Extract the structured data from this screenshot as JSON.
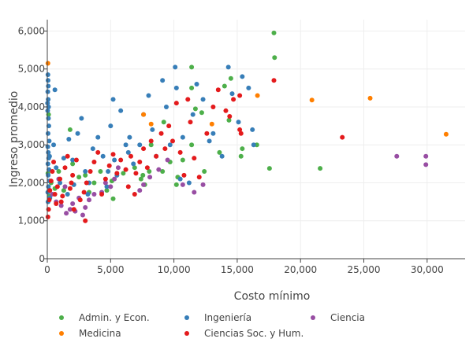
{
  "chart_data": {
    "type": "scatter",
    "xlabel": "Costo mínimo",
    "ylabel": "Ingreso promedio",
    "xlim": [
      0,
      33000
    ],
    "ylim": [
      0,
      6300
    ],
    "x_ticks": [
      0,
      5000,
      10000,
      15000,
      20000,
      25000,
      30000
    ],
    "x_tick_labels": [
      "0",
      "5,000",
      "10,000",
      "15,000",
      "20,000",
      "25,000",
      "30,000"
    ],
    "y_ticks": [
      0,
      1000,
      2000,
      3000,
      4000,
      5000,
      6000
    ],
    "y_tick_labels": [
      "0",
      "1,000",
      "2,000",
      "3,000",
      "4,000",
      "5,000",
      "6,000"
    ],
    "grid": true,
    "legend_position": "bottom",
    "series": [
      {
        "name": "Admin. y Econ.",
        "color": "#4daf4a",
        "points": [
          [
            17900,
            5950
          ],
          [
            17950,
            5300
          ],
          [
            17550,
            2380
          ],
          [
            21550,
            2380
          ],
          [
            16550,
            3000
          ],
          [
            15300,
            2700
          ],
          [
            15400,
            2900
          ],
          [
            14350,
            3650
          ],
          [
            11400,
            5050
          ],
          [
            11400,
            4500
          ],
          [
            11400,
            3000
          ],
          [
            12400,
            2300
          ],
          [
            10300,
            2150
          ],
          [
            10200,
            1950
          ],
          [
            9700,
            2550
          ],
          [
            9100,
            2300
          ],
          [
            8050,
            2300
          ],
          [
            7700,
            1950
          ],
          [
            7550,
            2200
          ],
          [
            6900,
            2400
          ],
          [
            5200,
            1580
          ],
          [
            5100,
            2050
          ],
          [
            4700,
            1800
          ],
          [
            4200,
            2300
          ],
          [
            3700,
            2000
          ],
          [
            3300,
            1750
          ],
          [
            2500,
            2150
          ],
          [
            2000,
            2500
          ],
          [
            1800,
            3400
          ],
          [
            1300,
            1800
          ],
          [
            900,
            2300
          ],
          [
            600,
            1850
          ],
          [
            300,
            2000
          ],
          [
            150,
            1650
          ],
          [
            100,
            3800
          ],
          [
            50,
            2250
          ],
          [
            200,
            1600
          ],
          [
            14500,
            4750
          ],
          [
            14000,
            4550
          ],
          [
            12200,
            3850
          ],
          [
            11700,
            3950
          ],
          [
            9200,
            3600
          ],
          [
            8200,
            3000
          ],
          [
            3000,
            2200
          ],
          [
            6000,
            2250
          ],
          [
            10700,
            2600
          ],
          [
            13600,
            2800
          ],
          [
            7400,
            2100
          ]
        ]
      },
      {
        "name": "Ingeniería",
        "color": "#377eb8",
        "points": [
          [
            50,
            4850
          ],
          [
            60,
            4700
          ],
          [
            80,
            4550
          ],
          [
            40,
            4400
          ],
          [
            70,
            4200
          ],
          [
            100,
            4000
          ],
          [
            30,
            3900
          ],
          [
            90,
            3700
          ],
          [
            120,
            3500
          ],
          [
            60,
            3300
          ],
          [
            150,
            3100
          ],
          [
            40,
            2950
          ],
          [
            80,
            2800
          ],
          [
            110,
            2650
          ],
          [
            50,
            2500
          ],
          [
            130,
            2350
          ],
          [
            70,
            2200
          ],
          [
            160,
            2050
          ],
          [
            90,
            1900
          ],
          [
            40,
            1750
          ],
          [
            200,
            1600
          ],
          [
            60,
            1500
          ],
          [
            20,
            4100
          ],
          [
            180,
            2700
          ],
          [
            600,
            4450
          ],
          [
            500,
            3000
          ],
          [
            700,
            2400
          ],
          [
            1000,
            2000
          ],
          [
            1300,
            2650
          ],
          [
            1700,
            3150
          ],
          [
            2000,
            2600
          ],
          [
            2400,
            3300
          ],
          [
            2700,
            3700
          ],
          [
            3000,
            2300
          ],
          [
            3300,
            2000
          ],
          [
            3600,
            2900
          ],
          [
            4000,
            3200
          ],
          [
            4400,
            2700
          ],
          [
            4800,
            2300
          ],
          [
            5000,
            3500
          ],
          [
            5200,
            4200
          ],
          [
            5300,
            2600
          ],
          [
            5500,
            2200
          ],
          [
            5800,
            3900
          ],
          [
            6200,
            3000
          ],
          [
            6500,
            3200
          ],
          [
            6800,
            2500
          ],
          [
            7300,
            3000
          ],
          [
            7600,
            3800
          ],
          [
            8000,
            4300
          ],
          [
            8300,
            3400
          ],
          [
            8600,
            2700
          ],
          [
            9100,
            4700
          ],
          [
            9400,
            4000
          ],
          [
            9700,
            3000
          ],
          [
            10100,
            5050
          ],
          [
            10200,
            4500
          ],
          [
            10500,
            2100
          ],
          [
            10700,
            3200
          ],
          [
            11200,
            2000
          ],
          [
            11500,
            3800
          ],
          [
            11800,
            4600
          ],
          [
            12300,
            4200
          ],
          [
            12800,
            3100
          ],
          [
            13100,
            3300
          ],
          [
            13800,
            2700
          ],
          [
            14300,
            5050
          ],
          [
            14600,
            4350
          ],
          [
            15100,
            3600
          ],
          [
            15400,
            4800
          ],
          [
            15900,
            4500
          ],
          [
            16200,
            3400
          ],
          [
            16300,
            3000
          ],
          [
            4700,
            1900
          ],
          [
            3200,
            1700
          ],
          [
            2100,
            1950
          ],
          [
            1600,
            1700
          ],
          [
            6400,
            2800
          ]
        ]
      },
      {
        "name": "Ciencia",
        "color": "#984ea3",
        "points": [
          [
            1500,
            1200
          ],
          [
            1800,
            1300
          ],
          [
            2200,
            1250
          ],
          [
            2800,
            1150
          ],
          [
            3000,
            1350
          ],
          [
            1100,
            1400
          ],
          [
            700,
            1500
          ],
          [
            2500,
            1600
          ],
          [
            3300,
            1550
          ],
          [
            3700,
            1700
          ],
          [
            4300,
            1750
          ],
          [
            4600,
            2000
          ],
          [
            5000,
            1900
          ],
          [
            5300,
            2100
          ],
          [
            5600,
            2400
          ],
          [
            7300,
            1800
          ],
          [
            7600,
            1950
          ],
          [
            8100,
            2150
          ],
          [
            8800,
            2350
          ],
          [
            9500,
            2600
          ],
          [
            10700,
            1950
          ],
          [
            11600,
            1750
          ],
          [
            12300,
            1950
          ],
          [
            27600,
            2700
          ],
          [
            29900,
            2700
          ],
          [
            29900,
            2480
          ],
          [
            900,
            2100
          ],
          [
            1400,
            1900
          ],
          [
            2000,
            1450
          ],
          [
            400,
            1700
          ]
        ]
      },
      {
        "name": "Medicina",
        "color": "#ff7f00",
        "points": [
          [
            50,
            5150
          ],
          [
            7600,
            3800
          ],
          [
            8200,
            3550
          ],
          [
            13000,
            3550
          ],
          [
            16600,
            4300
          ],
          [
            20900,
            4180
          ],
          [
            25500,
            4230
          ],
          [
            31500,
            3280
          ]
        ]
      },
      {
        "name": "Ciencias Soc. y Hum.",
        "color": "#e41a1c",
        "points": [
          [
            50,
            1100
          ],
          [
            100,
            1300
          ],
          [
            150,
            1550
          ],
          [
            200,
            1800
          ],
          [
            300,
            2050
          ],
          [
            400,
            2300
          ],
          [
            500,
            2550
          ],
          [
            600,
            1700
          ],
          [
            800,
            1900
          ],
          [
            1000,
            2100
          ],
          [
            1200,
            1650
          ],
          [
            1400,
            2400
          ],
          [
            1600,
            2700
          ],
          [
            1800,
            1850
          ],
          [
            2000,
            2200
          ],
          [
            2300,
            2600
          ],
          [
            2600,
            1550
          ],
          [
            2900,
            1750
          ],
          [
            3100,
            2000
          ],
          [
            3400,
            2300
          ],
          [
            3700,
            2550
          ],
          [
            4000,
            2800
          ],
          [
            4300,
            1700
          ],
          [
            4600,
            2100
          ],
          [
            4900,
            2450
          ],
          [
            5200,
            2750
          ],
          [
            5500,
            2250
          ],
          [
            5800,
            2600
          ],
          [
            6200,
            2350
          ],
          [
            6600,
            2700
          ],
          [
            7000,
            2250
          ],
          [
            7300,
            2550
          ],
          [
            7600,
            2900
          ],
          [
            7900,
            2400
          ],
          [
            8200,
            3100
          ],
          [
            8600,
            2700
          ],
          [
            9000,
            3300
          ],
          [
            9300,
            2900
          ],
          [
            9600,
            3500
          ],
          [
            9900,
            3100
          ],
          [
            10200,
            4100
          ],
          [
            10500,
            2800
          ],
          [
            10800,
            2200
          ],
          [
            11100,
            4200
          ],
          [
            11300,
            3600
          ],
          [
            11600,
            2650
          ],
          [
            12000,
            2150
          ],
          [
            12600,
            3300
          ],
          [
            13100,
            4000
          ],
          [
            13500,
            4450
          ],
          [
            14100,
            3900
          ],
          [
            14400,
            3750
          ],
          [
            14700,
            4200
          ],
          [
            15200,
            4300
          ],
          [
            15200,
            3400
          ],
          [
            15300,
            3300
          ],
          [
            17900,
            4700
          ],
          [
            23300,
            3200
          ],
          [
            700,
            1450
          ],
          [
            2100,
            1300
          ],
          [
            3000,
            1000
          ],
          [
            6400,
            1900
          ],
          [
            6900,
            1700
          ],
          [
            1100,
            1500
          ],
          [
            1900,
            2000
          ]
        ]
      }
    ]
  }
}
